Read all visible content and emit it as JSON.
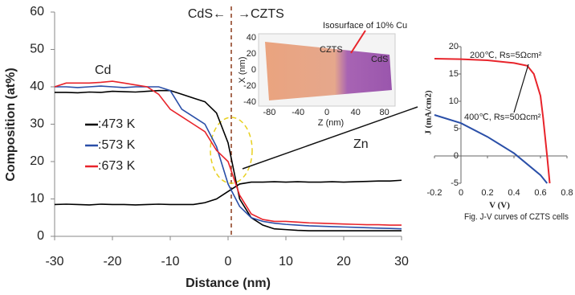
{
  "chart_data": [
    {
      "type": "line",
      "xlabel": "Distance (nm)",
      "ylabel": "Composition (at%)",
      "x": [
        -30,
        -28,
        -26,
        -24,
        -22,
        -20,
        -18,
        -16,
        -14,
        -12,
        -10,
        -8,
        -6,
        -4,
        -2,
        0,
        2,
        4,
        6,
        8,
        10,
        12,
        14,
        16,
        18,
        20,
        22,
        24,
        26,
        28,
        30
      ],
      "xlim": [
        -30,
        30
      ],
      "xticks": [
        -30,
        -20,
        -10,
        0,
        10,
        20,
        30
      ],
      "ylim": [
        0,
        60
      ],
      "yticks": [
        0,
        10,
        20,
        30,
        40,
        50,
        60
      ],
      "annotations": [
        "CdS←",
        "→CZTS",
        "Cd",
        "Zn"
      ],
      "series": [
        {
          "name": ":473 K",
          "color": "#000000",
          "values": [
            38.5,
            38.5,
            38.4,
            38.6,
            38.5,
            38.8,
            38.7,
            38.6,
            38.8,
            39,
            39,
            38,
            37,
            36,
            33,
            25,
            10,
            5,
            3,
            2,
            1.8,
            1.6,
            1.5,
            1.5,
            1.5,
            1.5,
            1.5,
            1.5,
            1.5,
            1.5,
            1.5
          ],
          "zn_values": [
            8.5,
            8.6,
            8.5,
            8.4,
            8.6,
            8.5,
            8.5,
            8.4,
            8.5,
            8.6,
            8.5,
            8.5,
            8.5,
            9,
            10,
            12,
            14,
            14.5,
            14.5,
            14.6,
            14.5,
            14.6,
            14.5,
            14.5,
            14.6,
            14.5,
            14.6,
            14.7,
            14.8,
            14.8,
            15
          ]
        },
        {
          "name": ":573 K",
          "color": "#2a4fa8",
          "values": [
            40,
            40,
            39.8,
            40,
            40.2,
            40,
            39.8,
            40,
            40,
            40,
            39,
            34,
            32,
            30,
            24,
            14,
            8,
            5,
            4,
            3.5,
            3.2,
            3,
            2.8,
            2.7,
            2.6,
            2.5,
            2.4,
            2.3,
            2.2,
            2.1,
            2
          ]
        },
        {
          "name": ":673 K",
          "color": "#e8242b",
          "values": [
            40,
            41,
            41,
            41,
            41.2,
            41.5,
            41,
            40.5,
            40,
            38,
            34,
            32,
            30,
            28,
            23,
            20,
            11,
            6,
            4.5,
            4,
            4,
            3.8,
            3.6,
            3.5,
            3.4,
            3.3,
            3.2,
            3.1,
            3.1,
            3,
            3
          ]
        }
      ]
    },
    {
      "type": "line",
      "xlabel": "V (V)",
      "ylabel": "J (mA/cm2)",
      "caption": "Fig. J-V curves of CZTS cells",
      "xlim": [
        -0.2,
        0.8
      ],
      "xticks": [
        -0.2,
        0,
        0.2,
        0.4,
        0.6,
        0.8
      ],
      "ylim": [
        -5,
        20
      ],
      "yticks": [
        -5,
        0,
        5,
        10,
        15,
        20
      ],
      "series": [
        {
          "name": "200℃, Rs=5Ωcm²",
          "color": "#e8242b",
          "x": [
            -0.2,
            0,
            0.2,
            0.4,
            0.5,
            0.55,
            0.6,
            0.62,
            0.65,
            0.67
          ],
          "values": [
            17.8,
            17.7,
            17.5,
            17,
            16.5,
            15,
            11,
            7,
            0,
            -5
          ]
        },
        {
          "name": "400℃, Rs=50Ωcm²",
          "color": "#2a4fa8",
          "x": [
            -0.2,
            0,
            0.2,
            0.3,
            0.4,
            0.5,
            0.6,
            0.65
          ],
          "values": [
            7.5,
            6,
            3.5,
            2,
            0.5,
            -1.5,
            -3.5,
            -5
          ]
        }
      ]
    },
    {
      "type": "image",
      "title": "Isosurface of 10% Cu",
      "labels": [
        "CZTS",
        "CdS"
      ],
      "xlabel": "Z (nm)",
      "ylabel": "X (nm)",
      "xlim": [
        -95,
        95
      ],
      "xticks": [
        -80,
        -40,
        0,
        40,
        80
      ],
      "ylim": [
        -45,
        45
      ],
      "yticks": [
        40,
        20,
        0,
        -20,
        -40
      ]
    }
  ]
}
